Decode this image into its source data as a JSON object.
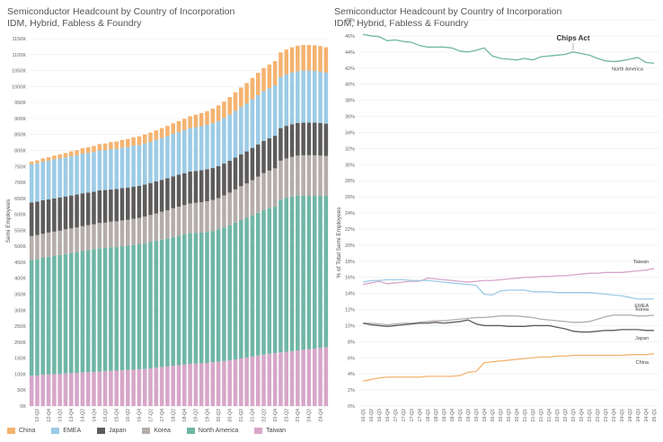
{
  "left_chart": {
    "title": "Semiconductor Headcount by Country of Incorporation",
    "subtitle": "IDM, Hybrid, Fabless & Foundry",
    "ylabel": "Semi Employees"
  },
  "right_chart": {
    "title": "Semiconductor Headcount by Country of Incorporation",
    "subtitle": "IDM, Hybrid, Fabless & Foundry",
    "ylabel": "% of Total Semi Employees",
    "annotation": "Chips Act"
  },
  "colors": {
    "China": "#f5b370",
    "EMEA": "#9ccbe6",
    "Japan": "#5e5b5b",
    "Korea": "#b5adaa",
    "North America": "#6fb6a6",
    "Taiwan": "#d7a6c9"
  },
  "legend": [
    {
      "label": "China",
      "color": "#f5b370"
    },
    {
      "label": "EMEA",
      "color": "#9ccbe6"
    },
    {
      "label": "Japan",
      "color": "#5e5b5b"
    },
    {
      "label": "Korea",
      "color": "#b5adaa"
    },
    {
      "label": "North America",
      "color": "#6fb6a6"
    },
    {
      "label": "Taiwan",
      "color": "#d7a6c9"
    }
  ],
  "chart_data": [
    {
      "type": "bar",
      "stacked": true,
      "title": "Semiconductor Headcount by Country of Incorporation",
      "subtitle": "IDM, Hybrid, Fabless & Foundry",
      "xlabel": "",
      "ylabel": "Semi Employees",
      "ylim": [
        0,
        1150000
      ],
      "yticks": [
        "0K",
        "50K",
        "100K",
        "150K",
        "200K",
        "250K",
        "300K",
        "350K",
        "400K",
        "450K",
        "500K",
        "550K",
        "600K",
        "650K",
        "700K",
        "750K",
        "800K",
        "850K",
        "900K",
        "950K",
        "1000K",
        "1050K",
        "1100K",
        "1150K"
      ],
      "xticks": [
        "2012-Q2",
        "2012-Q4",
        "2013-Q2",
        "2013-Q4",
        "2014-Q2",
        "2014-Q4",
        "2015-Q2",
        "2015-Q4",
        "2016-Q2",
        "2016-Q4",
        "2017-Q2",
        "2017-Q4",
        "2018-Q2",
        "2018-Q4",
        "2019-Q2",
        "2019-Q4",
        "2020-Q2",
        "2020-Q4",
        "2021-Q2",
        "2021-Q4",
        "2022-Q2",
        "2022-Q4",
        "2023-Q2",
        "2023-Q4",
        "2024-Q2",
        "2024-Q4"
      ],
      "grid": true,
      "stack_order": [
        "Taiwan",
        "North America",
        "Korea",
        "Japan",
        "EMEA",
        "China"
      ],
      "categories": [
        "2012-Q1",
        "2012-Q2",
        "2012-Q3",
        "2012-Q4",
        "2013-Q1",
        "2013-Q2",
        "2013-Q3",
        "2013-Q4",
        "2014-Q1",
        "2014-Q2",
        "2014-Q3",
        "2014-Q4",
        "2015-Q1",
        "2015-Q2",
        "2015-Q3",
        "2015-Q4",
        "2016-Q1",
        "2016-Q2",
        "2016-Q3",
        "2016-Q4",
        "2017-Q1",
        "2017-Q2",
        "2017-Q3",
        "2017-Q4",
        "2018-Q1",
        "2018-Q2",
        "2018-Q3",
        "2018-Q4",
        "2019-Q1",
        "2019-Q2",
        "2019-Q3",
        "2019-Q4",
        "2020-Q1",
        "2020-Q2",
        "2020-Q3",
        "2020-Q4",
        "2021-Q1",
        "2021-Q2",
        "2021-Q3",
        "2021-Q4",
        "2022-Q1",
        "2022-Q2",
        "2022-Q3",
        "2022-Q4",
        "2023-Q1",
        "2023-Q2",
        "2023-Q3",
        "2023-Q4",
        "2024-Q1",
        "2024-Q2",
        "2024-Q3",
        "2024-Q4",
        "2025-Q1"
      ],
      "series": [
        {
          "name": "Taiwan",
          "values": [
            95000,
            96000,
            98000,
            99000,
            100000,
            101000,
            102000,
            103000,
            104000,
            105000,
            106000,
            107000,
            108000,
            109000,
            110000,
            111000,
            112000,
            113000,
            114000,
            115000,
            116000,
            118000,
            120000,
            122000,
            124000,
            126000,
            128000,
            130000,
            132000,
            133000,
            134000,
            135000,
            137000,
            139000,
            141000,
            143000,
            146000,
            149000,
            152000,
            155000,
            158000,
            161000,
            164000,
            166000,
            168000,
            170000,
            172000,
            174000,
            176000,
            178000,
            180000,
            182000,
            184000
          ]
        },
        {
          "name": "North America",
          "values": [
            362000,
            364000,
            366000,
            368000,
            370000,
            372000,
            374000,
            376000,
            378000,
            380000,
            382000,
            384000,
            386000,
            386000,
            387000,
            387000,
            388000,
            389000,
            390000,
            391000,
            393000,
            395000,
            397000,
            399000,
            401000,
            403000,
            405000,
            407000,
            409000,
            409000,
            409000,
            410000,
            411000,
            414000,
            418000,
            423000,
            428000,
            433000,
            437000,
            442000,
            447000,
            452000,
            455000,
            458000,
            478000,
            482000,
            484000,
            485000,
            483000,
            480000,
            478000,
            476000,
            474000
          ]
        },
        {
          "name": "Korea",
          "values": [
            75000,
            75000,
            75000,
            76000,
            76000,
            76000,
            77000,
            77000,
            77000,
            78000,
            78000,
            78000,
            79000,
            79000,
            80000,
            80000,
            81000,
            81000,
            82000,
            83000,
            84000,
            85000,
            86000,
            87000,
            88000,
            90000,
            91000,
            92000,
            93000,
            94000,
            95000,
            96000,
            97000,
            98000,
            100000,
            102000,
            104000,
            106000,
            108000,
            110000,
            113000,
            116000,
            118000,
            120000,
            122000,
            123000,
            124000,
            125000,
            126000,
            127000,
            127000,
            126000,
            125000
          ]
        },
        {
          "name": "Japan",
          "values": [
            105000,
            105000,
            105000,
            104000,
            104000,
            104000,
            103000,
            103000,
            103000,
            103000,
            102000,
            102000,
            102000,
            102000,
            101000,
            101000,
            101000,
            101000,
            101000,
            100000,
            100000,
            100000,
            100000,
            100000,
            100000,
            100000,
            100000,
            100000,
            100000,
            100000,
            100000,
            100000,
            100000,
            100000,
            100000,
            100000,
            100000,
            100000,
            100000,
            101000,
            101000,
            101000,
            101000,
            102000,
            102000,
            102000,
            102000,
            102000,
            102000,
            102000,
            102000,
            102000,
            101000
          ]
        },
        {
          "name": "EMEA",
          "values": [
            120000,
            120000,
            121000,
            121000,
            122000,
            122000,
            122000,
            123000,
            123000,
            124000,
            124000,
            124000,
            125000,
            125000,
            126000,
            126000,
            127000,
            127000,
            128000,
            128000,
            129000,
            129000,
            130000,
            131000,
            132000,
            133000,
            134000,
            135000,
            136000,
            137000,
            138000,
            139000,
            140000,
            141000,
            142000,
            144000,
            146000,
            148000,
            150000,
            152000,
            154000,
            156000,
            157000,
            158000,
            160000,
            161000,
            162000,
            162000,
            163000,
            163000,
            162000,
            161000,
            160000
          ]
        },
        {
          "name": "China",
          "values": [
            8000,
            9000,
            10000,
            11000,
            12000,
            13000,
            14000,
            15000,
            16000,
            17000,
            18000,
            19000,
            20000,
            21000,
            22000,
            23000,
            24000,
            25000,
            26000,
            27000,
            28000,
            29000,
            30000,
            31000,
            32000,
            33000,
            34000,
            35000,
            37000,
            39000,
            41000,
            43000,
            46000,
            49000,
            52000,
            55000,
            58000,
            61000,
            64000,
            67000,
            70000,
            72000,
            74000,
            76000,
            77000,
            78000,
            79000,
            80000,
            80000,
            80000,
            80000,
            80000,
            79000
          ]
        }
      ]
    },
    {
      "type": "line",
      "title": "Semiconductor Headcount by Country of Incorporation",
      "subtitle": "IDM, Hybrid, Fabless & Foundry",
      "xlabel": "",
      "ylabel": "% of Total Semi Employees",
      "ylim": [
        0,
        48
      ],
      "yticks": [
        "0%",
        "2%",
        "4%",
        "6%",
        "8%",
        "10%",
        "12%",
        "14%",
        "16%",
        "18%",
        "20%",
        "22%",
        "24%",
        "26%",
        "28%",
        "30%",
        "32%",
        "34%",
        "36%",
        "38%",
        "40%",
        "42%",
        "44%",
        "46%",
        "48%"
      ],
      "grid": true,
      "x": [
        "2016-Q1",
        "2016-Q2",
        "2016-Q3",
        "2016-Q4",
        "2017-Q1",
        "2017-Q2",
        "2017-Q3",
        "2017-Q4",
        "2018-Q1",
        "2018-Q2",
        "2018-Q3",
        "2018-Q4",
        "2019-Q1",
        "2019-Q2",
        "2019-Q3",
        "2019-Q4",
        "2020-Q1",
        "2020-Q2",
        "2020-Q3",
        "2020-Q4",
        "2021-Q1",
        "2021-Q2",
        "2021-Q3",
        "2021-Q4",
        "2022-Q1",
        "2022-Q2",
        "2022-Q3",
        "2022-Q4",
        "2023-Q1",
        "2023-Q2",
        "2023-Q3",
        "2023-Q4",
        "2024-Q1",
        "2024-Q2",
        "2024-Q3",
        "2024-Q4",
        "2025-Q1"
      ],
      "annotation": {
        "text": "Chips Act",
        "x": "2022-Q3"
      },
      "series": [
        {
          "name": "North America",
          "values": [
            46.2,
            46.0,
            45.9,
            45.4,
            45.5,
            45.3,
            45.2,
            44.8,
            44.6,
            44.6,
            44.6,
            44.5,
            44.1,
            44.0,
            44.2,
            44.5,
            43.5,
            43.2,
            43.1,
            43.0,
            43.2,
            43.0,
            43.4,
            43.5,
            43.6,
            43.7,
            44.0,
            43.8,
            43.6,
            43.2,
            42.9,
            42.8,
            42.9,
            43.1,
            43.3,
            42.7,
            42.6
          ]
        },
        {
          "name": "Taiwan",
          "values": [
            15.1,
            15.3,
            15.5,
            15.2,
            15.3,
            15.4,
            15.5,
            15.5,
            15.9,
            15.8,
            15.7,
            15.6,
            15.5,
            15.4,
            15.5,
            15.6,
            15.6,
            15.7,
            15.8,
            15.9,
            16.0,
            16.0,
            16.1,
            16.1,
            16.2,
            16.2,
            16.3,
            16.4,
            16.5,
            16.5,
            16.6,
            16.6,
            16.6,
            16.7,
            16.8,
            16.9,
            17.1
          ]
        },
        {
          "name": "EMEA",
          "values": [
            15.4,
            15.6,
            15.6,
            15.7,
            15.7,
            15.7,
            15.6,
            15.6,
            15.6,
            15.5,
            15.4,
            15.3,
            15.2,
            15.1,
            15.0,
            13.9,
            13.8,
            14.3,
            14.4,
            14.4,
            14.4,
            14.2,
            14.2,
            14.2,
            14.1,
            14.1,
            14.1,
            14.1,
            14.1,
            14.0,
            13.9,
            13.8,
            13.7,
            13.5,
            13.3,
            13.3,
            13.3
          ]
        },
        {
          "name": "Korea",
          "values": [
            10.3,
            10.3,
            10.2,
            10.1,
            10.2,
            10.3,
            10.3,
            10.4,
            10.5,
            10.6,
            10.6,
            10.7,
            10.8,
            10.9,
            11.0,
            11.0,
            11.1,
            11.2,
            11.2,
            11.2,
            11.1,
            11.0,
            10.8,
            10.7,
            10.6,
            10.5,
            10.4,
            10.4,
            10.5,
            10.8,
            11.1,
            11.3,
            11.3,
            11.3,
            11.2,
            11.2,
            11.3
          ]
        },
        {
          "name": "Japan",
          "values": [
            10.3,
            10.1,
            10.0,
            9.9,
            10.0,
            10.1,
            10.2,
            10.3,
            10.3,
            10.4,
            10.3,
            10.4,
            10.5,
            10.7,
            10.2,
            10.0,
            10.0,
            10.0,
            9.9,
            9.9,
            9.9,
            10.0,
            10.0,
            10.0,
            9.8,
            9.6,
            9.3,
            9.2,
            9.2,
            9.3,
            9.4,
            9.4,
            9.5,
            9.5,
            9.5,
            9.4,
            9.4
          ]
        },
        {
          "name": "China",
          "values": [
            3.1,
            3.3,
            3.5,
            3.6,
            3.6,
            3.6,
            3.6,
            3.6,
            3.7,
            3.7,
            3.7,
            3.7,
            3.8,
            4.2,
            4.3,
            5.4,
            5.5,
            5.6,
            5.7,
            5.8,
            5.9,
            6.0,
            6.1,
            6.1,
            6.2,
            6.2,
            6.3,
            6.3,
            6.3,
            6.3,
            6.3,
            6.3,
            6.3,
            6.4,
            6.4,
            6.4,
            6.5
          ]
        }
      ]
    }
  ]
}
